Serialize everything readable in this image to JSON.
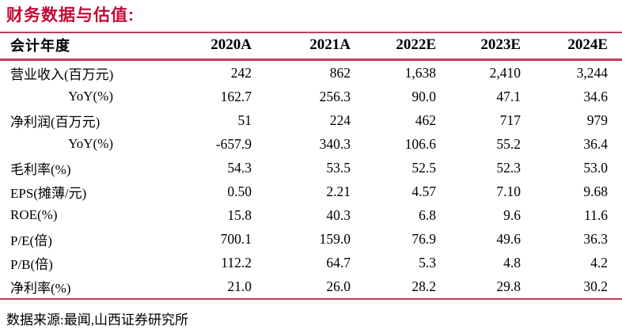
{
  "title": "财务数据与估值:",
  "colors": {
    "accent": "#c40a33",
    "line": "#c53a5a"
  },
  "table": {
    "header": [
      "会计年度",
      "2020A",
      "2021A",
      "2022E",
      "2023E",
      "2024E"
    ],
    "rows": [
      {
        "label": "营业收入(百万元)",
        "indent": false,
        "values": [
          "242",
          "862",
          "1,638",
          "2,410",
          "3,244"
        ]
      },
      {
        "label": "YoY(%)",
        "indent": true,
        "values": [
          "162.7",
          "256.3",
          "90.0",
          "47.1",
          "34.6"
        ]
      },
      {
        "label": "净利润(百万元)",
        "indent": false,
        "values": [
          "51",
          "224",
          "462",
          "717",
          "979"
        ]
      },
      {
        "label": "YoY(%)",
        "indent": true,
        "values": [
          "-657.9",
          "340.3",
          "106.6",
          "55.2",
          "36.4"
        ]
      },
      {
        "label": "毛利率(%)",
        "indent": false,
        "values": [
          "54.3",
          "53.5",
          "52.5",
          "52.3",
          "53.0"
        ]
      },
      {
        "label": "EPS(摊薄/元)",
        "indent": false,
        "values": [
          "0.50",
          "2.21",
          "4.57",
          "7.10",
          "9.68"
        ]
      },
      {
        "label": "ROE(%)",
        "indent": false,
        "values": [
          "15.8",
          "40.3",
          "6.8",
          "9.6",
          "11.6"
        ]
      },
      {
        "label": "P/E(倍)",
        "indent": false,
        "values": [
          "700.1",
          "159.0",
          "76.9",
          "49.6",
          "36.3"
        ]
      },
      {
        "label": "P/B(倍)",
        "indent": false,
        "values": [
          "112.2",
          "64.7",
          "5.3",
          "4.8",
          "4.2"
        ]
      },
      {
        "label": "净利率(%)",
        "indent": false,
        "values": [
          "21.0",
          "26.0",
          "28.2",
          "29.8",
          "30.2"
        ]
      }
    ]
  },
  "footer": "数据来源:最闻,山西证券研究所"
}
